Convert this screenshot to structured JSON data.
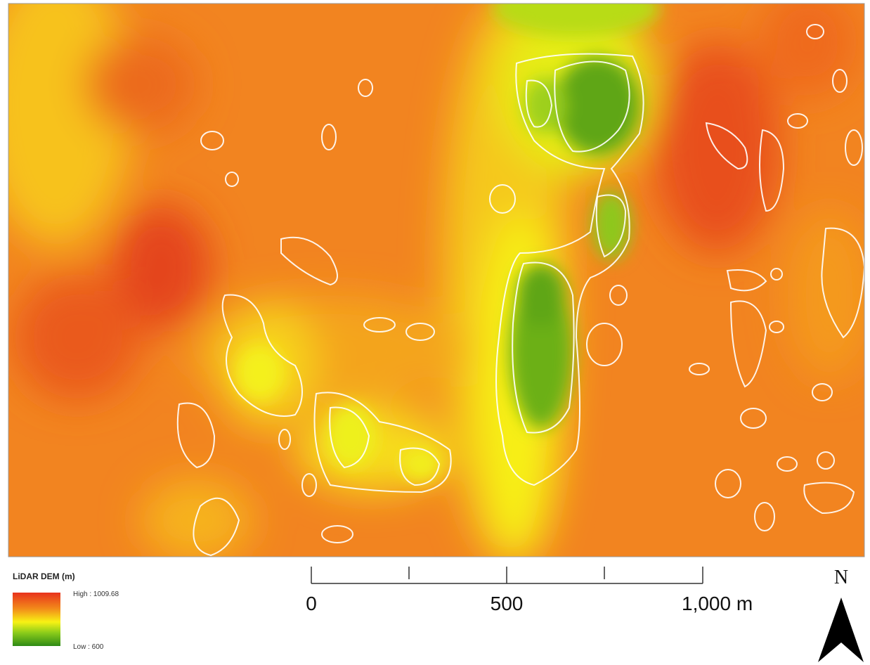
{
  "legend": {
    "title": "LiDAR DEM (m)",
    "high": "High : 1009.68",
    "low": "Low : 600"
  },
  "scale_bar": {
    "labels": [
      "0",
      "500",
      "1,000 m"
    ]
  },
  "north_arrow": {
    "label": "N"
  }
}
